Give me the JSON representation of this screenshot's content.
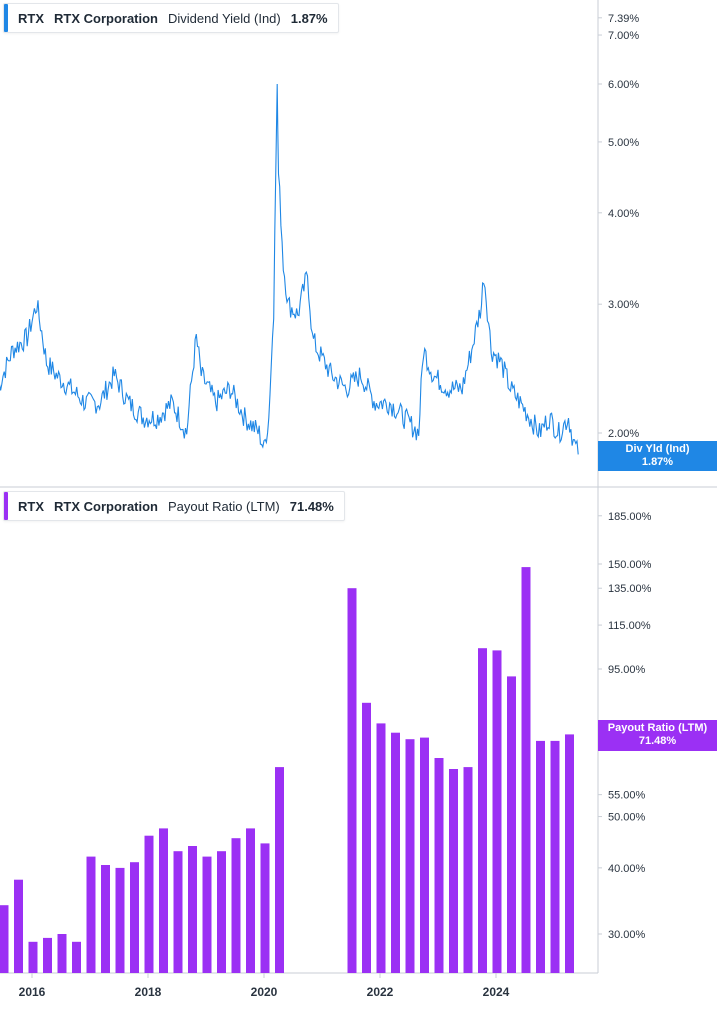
{
  "colors": {
    "div_yield": "#1f87e5",
    "payout": "#9b30f4",
    "axis": "#c9ced6",
    "text": "#2a3440"
  },
  "top_legend": {
    "ticker": "RTX",
    "company": "RTX Corporation",
    "metric": "Dividend Yield (Ind)",
    "value": "1.87%"
  },
  "bottom_legend": {
    "ticker": "RTX",
    "company": "RTX Corporation",
    "metric": "Payout Ratio (LTM)",
    "value": "71.48%"
  },
  "top_tag": {
    "label": "Div Yld (Ind)",
    "value": "1.87%"
  },
  "bottom_tag": {
    "label": "Payout Ratio (LTM)",
    "value": "71.48%"
  },
  "chart_data": [
    {
      "type": "line",
      "scale": "log",
      "title": "RTX RTX Corporation Dividend Yield (Ind) 1.87%",
      "x_range": [
        "2015-06",
        "2025-06"
      ],
      "ylim": [
        1.8,
        7.6
      ],
      "y_ticks": [
        "7.39%",
        "7.00%",
        "6.00%",
        "5.00%",
        "4.00%",
        "3.00%",
        "2.00%"
      ],
      "y_tick_values": [
        7.39,
        7.0,
        6.0,
        5.0,
        4.0,
        3.0,
        2.0
      ],
      "series": [
        {
          "name": "Dividend Yield (Ind)",
          "x": [
            "2015-06",
            "2015-09",
            "2015-12",
            "2016-02",
            "2016-04",
            "2016-06",
            "2016-09",
            "2016-12",
            "2017-03",
            "2017-06",
            "2017-09",
            "2017-12",
            "2018-03",
            "2018-06",
            "2018-09",
            "2018-11",
            "2018-12",
            "2019-03",
            "2019-06",
            "2019-09",
            "2019-12",
            "2020-01",
            "2020-02",
            "2020-03",
            "2020-03-23",
            "2020-04",
            "2020-05",
            "2020-06",
            "2020-08",
            "2020-10",
            "2020-11",
            "2020-12",
            "2021-03",
            "2021-06",
            "2021-09",
            "2021-12",
            "2022-03",
            "2022-06",
            "2022-09",
            "2022-10",
            "2022-12",
            "2023-03",
            "2023-06",
            "2023-08",
            "2023-10",
            "2023-10-15",
            "2023-12",
            "2024-02",
            "2024-04",
            "2024-06",
            "2024-08",
            "2024-10",
            "2024-12",
            "2025-02",
            "2025-04",
            "2025-05",
            "2025-06"
          ],
          "values": [
            2.3,
            2.6,
            2.7,
            3.0,
            2.5,
            2.4,
            2.3,
            2.2,
            2.2,
            2.4,
            2.2,
            2.1,
            2.1,
            2.2,
            2.0,
            2.7,
            2.4,
            2.2,
            2.3,
            2.1,
            2.0,
            1.9,
            2.1,
            2.9,
            5.9,
            4.5,
            3.4,
            3.0,
            2.9,
            3.3,
            2.7,
            2.6,
            2.4,
            2.3,
            2.4,
            2.2,
            2.2,
            2.1,
            2.0,
            2.6,
            2.4,
            2.3,
            2.3,
            2.6,
            3.0,
            3.3,
            2.6,
            2.5,
            2.3,
            2.2,
            2.1,
            2.0,
            2.1,
            2.0,
            2.1,
            1.95,
            1.87
          ]
        }
      ]
    },
    {
      "type": "bar",
      "scale": "log",
      "title": "RTX RTX Corporation Payout Ratio (LTM) 71.48%",
      "ylim": [
        25,
        210
      ],
      "y_ticks": [
        "185.00%",
        "150.00%",
        "135.00%",
        "115.00%",
        "95.00%",
        "75.00%",
        "55.00%",
        "50.00%",
        "40.00%",
        "30.00%"
      ],
      "y_tick_values": [
        185,
        150,
        135,
        115,
        95,
        75,
        55,
        50,
        40,
        30
      ],
      "x_ticks": [
        "2016",
        "2018",
        "2020",
        "2022",
        "2024"
      ],
      "categories": [
        "2015-Q2",
        "2015-Q3",
        "2015-Q4",
        "2016-Q1",
        "2016-Q2",
        "2016-Q3",
        "2016-Q4",
        "2017-Q1",
        "2017-Q2",
        "2017-Q3",
        "2017-Q4",
        "2018-Q1",
        "2018-Q2",
        "2018-Q3",
        "2018-Q4",
        "2019-Q1",
        "2019-Q2",
        "2019-Q3",
        "2019-Q4",
        "2020-Q1",
        "2020-Q2",
        "2020-Q3",
        "2020-Q4",
        "2021-Q1",
        "2021-Q2",
        "2021-Q3",
        "2021-Q4",
        "2022-Q1",
        "2022-Q2",
        "2022-Q3",
        "2022-Q4",
        "2023-Q1",
        "2023-Q2",
        "2023-Q3",
        "2023-Q4",
        "2024-Q1",
        "2024-Q2",
        "2024-Q3",
        "2024-Q4",
        "2025-Q1"
      ],
      "series": [
        {
          "name": "Payout Ratio (LTM)",
          "values": [
            34,
            38,
            29,
            29.5,
            30,
            29,
            42,
            40.5,
            40,
            41,
            46,
            47.5,
            43,
            44,
            42,
            43,
            45.5,
            47.5,
            44.5,
            62,
            null,
            null,
            null,
            null,
            135,
            82,
            75,
            72,
            70,
            70.5,
            64.5,
            61.5,
            62,
            104,
            103,
            92,
            148,
            69.5,
            69.5,
            71.48
          ]
        }
      ]
    }
  ]
}
